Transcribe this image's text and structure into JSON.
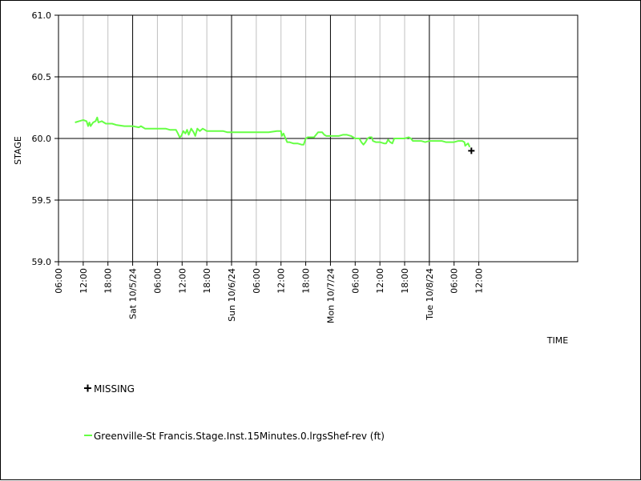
{
  "chart_data": {
    "type": "line",
    "xlabel": "TIME",
    "ylabel": "STAGE",
    "ylim": [
      59.0,
      61.0
    ],
    "y_ticks": [
      "59.0",
      "59.5",
      "60.0",
      "60.5",
      "61.0"
    ],
    "y_tick_values": [
      59.0,
      59.5,
      60.0,
      60.5,
      61.0
    ],
    "x_range_hours": [
      -18,
      108
    ],
    "x_ticks": [
      {
        "h": -18,
        "label": "06:00",
        "major": false
      },
      {
        "h": -12,
        "label": "12:00",
        "major": false
      },
      {
        "h": -6,
        "label": "18:00",
        "major": false
      },
      {
        "h": 0,
        "label": "Sat 10/5/24",
        "major": true
      },
      {
        "h": 6,
        "label": "06:00",
        "major": false
      },
      {
        "h": 12,
        "label": "12:00",
        "major": false
      },
      {
        "h": 18,
        "label": "18:00",
        "major": false
      },
      {
        "h": 24,
        "label": "Sun 10/6/24",
        "major": true
      },
      {
        "h": 30,
        "label": "06:00",
        "major": false
      },
      {
        "h": 36,
        "label": "12:00",
        "major": false
      },
      {
        "h": 42,
        "label": "18:00",
        "major": false
      },
      {
        "h": 48,
        "label": "Mon 10/7/24",
        "major": true
      },
      {
        "h": 54,
        "label": "06:00",
        "major": false
      },
      {
        "h": 60,
        "label": "12:00",
        "major": false
      },
      {
        "h": 66,
        "label": "18:00",
        "major": false
      },
      {
        "h": 72,
        "label": "Tue 10/8/24",
        "major": true
      },
      {
        "h": 78,
        "label": "06:00",
        "major": false
      },
      {
        "h": 84,
        "label": "12:00",
        "major": false
      }
    ],
    "grid": true,
    "legend_position": "bottom-left",
    "series": [
      {
        "name": "Greenville-St Francis.Stage.Inst.15Minutes.0.lrgsShef-rev (ft)",
        "color": "#66ff44",
        "points": [
          [
            -14,
            60.13
          ],
          [
            -13,
            60.14
          ],
          [
            -12,
            60.15
          ],
          [
            -11.2,
            60.14
          ],
          [
            -10.8,
            60.1
          ],
          [
            -10.5,
            60.13
          ],
          [
            -10.2,
            60.1
          ],
          [
            -9.6,
            60.13
          ],
          [
            -9,
            60.14
          ],
          [
            -8.6,
            60.17
          ],
          [
            -8.3,
            60.13
          ],
          [
            -7.5,
            60.14
          ],
          [
            -6.5,
            60.12
          ],
          [
            -5,
            60.12
          ],
          [
            -4,
            60.11
          ],
          [
            -2,
            60.1
          ],
          [
            0,
            60.1
          ],
          [
            1.5,
            60.09
          ],
          [
            2,
            60.1
          ],
          [
            2.5,
            60.09
          ],
          [
            3,
            60.08
          ],
          [
            6,
            60.08
          ],
          [
            8,
            60.08
          ],
          [
            9,
            60.07
          ],
          [
            10.5,
            60.07
          ],
          [
            11,
            60.04
          ],
          [
            11.4,
            60.01
          ],
          [
            11.8,
            60.02
          ],
          [
            12.3,
            60.06
          ],
          [
            12.8,
            60.04
          ],
          [
            13.2,
            60.07
          ],
          [
            13.6,
            60.03
          ],
          [
            14.2,
            60.08
          ],
          [
            14.8,
            60.05
          ],
          [
            15.2,
            60.02
          ],
          [
            15.7,
            60.08
          ],
          [
            16.3,
            60.06
          ],
          [
            17,
            60.08
          ],
          [
            17.5,
            60.07
          ],
          [
            18,
            60.06
          ],
          [
            20,
            60.06
          ],
          [
            22,
            60.06
          ],
          [
            23,
            60.05
          ],
          [
            24,
            60.05
          ],
          [
            27,
            60.05
          ],
          [
            30,
            60.05
          ],
          [
            33,
            60.05
          ],
          [
            35,
            60.06
          ],
          [
            36,
            60.06
          ],
          [
            36.2,
            60.02
          ],
          [
            36.6,
            60.04
          ],
          [
            37.1,
            60.0
          ],
          [
            37.5,
            59.97
          ],
          [
            38,
            59.97
          ],
          [
            39,
            59.96
          ],
          [
            40,
            59.96
          ],
          [
            41,
            59.95
          ],
          [
            41.5,
            59.95
          ],
          [
            42,
            60.0
          ],
          [
            42.5,
            60.01
          ],
          [
            44,
            60.01
          ],
          [
            45,
            60.05
          ],
          [
            46,
            60.05
          ],
          [
            46.5,
            60.03
          ],
          [
            47,
            60.02
          ],
          [
            48,
            60.02
          ],
          [
            49,
            60.02
          ],
          [
            50,
            60.02
          ],
          [
            51,
            60.03
          ],
          [
            52,
            60.03
          ],
          [
            53,
            60.02
          ],
          [
            54,
            60.0
          ],
          [
            55,
            60.0
          ],
          [
            55.5,
            59.97
          ],
          [
            56,
            59.95
          ],
          [
            56.5,
            59.97
          ],
          [
            57,
            60.0
          ],
          [
            57.5,
            60.01
          ],
          [
            58,
            60.01
          ],
          [
            58.3,
            59.98
          ],
          [
            59,
            59.97
          ],
          [
            60,
            59.97
          ],
          [
            61,
            59.96
          ],
          [
            61.5,
            59.96
          ],
          [
            62,
            59.99
          ],
          [
            62.5,
            59.97
          ],
          [
            63,
            59.96
          ],
          [
            63.5,
            60.0
          ],
          [
            64,
            60.0
          ],
          [
            65,
            60.0
          ],
          [
            66,
            60.0
          ],
          [
            67,
            60.01
          ],
          [
            67.5,
            60.0
          ],
          [
            68,
            59.98
          ],
          [
            69,
            59.98
          ],
          [
            70,
            59.98
          ],
          [
            71,
            59.97
          ],
          [
            72,
            59.98
          ],
          [
            73,
            59.98
          ],
          [
            74,
            59.98
          ],
          [
            75,
            59.98
          ],
          [
            76,
            59.97
          ],
          [
            77,
            59.97
          ],
          [
            78,
            59.97
          ],
          [
            79,
            59.98
          ],
          [
            80,
            59.98
          ],
          [
            80.5,
            59.97
          ],
          [
            80.7,
            59.94
          ],
          [
            81,
            59.95
          ],
          [
            81.4,
            59.96
          ],
          [
            81.8,
            59.93
          ]
        ]
      }
    ],
    "missing_points": [
      [
        82.2,
        59.9
      ]
    ],
    "missing_label": "MISSING"
  }
}
